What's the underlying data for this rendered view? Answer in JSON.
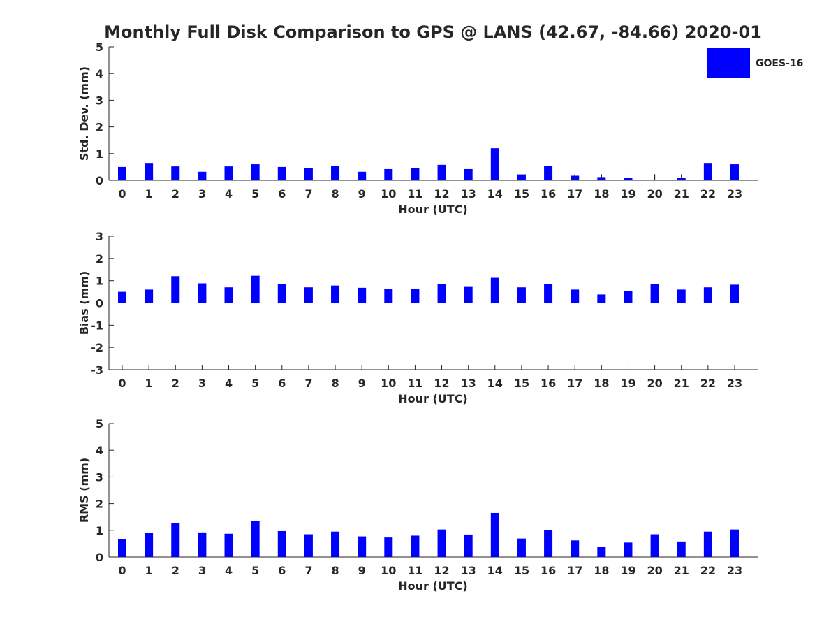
{
  "figure": {
    "title": "Monthly Full Disk Comparison to GPS @ LANS (42.67, -84.66) 2020-01"
  },
  "legend": {
    "label": "GOES-16",
    "color": "#0000ff",
    "placement": "top-right"
  },
  "chart_data": [
    {
      "type": "bar",
      "xlabel": "Hour (UTC)",
      "ylabel": "Std. Dev. (mm)",
      "ylim": [
        0,
        5
      ],
      "yticks": [
        0,
        1,
        2,
        3,
        4,
        5
      ],
      "categories": [
        "0",
        "1",
        "2",
        "3",
        "4",
        "5",
        "6",
        "7",
        "8",
        "9",
        "10",
        "11",
        "12",
        "13",
        "14",
        "15",
        "16",
        "17",
        "18",
        "19",
        "20",
        "21",
        "22",
        "23"
      ],
      "series": [
        {
          "name": "GOES-16",
          "color": "#0000ff",
          "values": [
            0.5,
            0.65,
            0.52,
            0.32,
            0.52,
            0.6,
            0.5,
            0.47,
            0.55,
            0.32,
            0.42,
            0.47,
            0.58,
            0.42,
            1.2,
            0.22,
            0.55,
            0.17,
            0.12,
            0.08,
            0.0,
            0.08,
            0.65,
            0.6
          ]
        }
      ],
      "error_caps": [
        0,
        0,
        0,
        0,
        0,
        0,
        0,
        0,
        0,
        0,
        0,
        0,
        0,
        0,
        0,
        0,
        0,
        0.23,
        0.23,
        0.23,
        0.23,
        0.23,
        0,
        0
      ]
    },
    {
      "type": "bar",
      "xlabel": "Hour (UTC)",
      "ylabel": "Bias (mm)",
      "ylim": [
        -3,
        3
      ],
      "yticks": [
        -3,
        -2,
        -1,
        0,
        1,
        2,
        3
      ],
      "categories": [
        "0",
        "1",
        "2",
        "3",
        "4",
        "5",
        "6",
        "7",
        "8",
        "9",
        "10",
        "11",
        "12",
        "13",
        "14",
        "15",
        "16",
        "17",
        "18",
        "19",
        "20",
        "21",
        "22",
        "23"
      ],
      "series": [
        {
          "name": "GOES-16",
          "color": "#0000ff",
          "values": [
            0.5,
            0.6,
            1.2,
            0.88,
            0.7,
            1.22,
            0.85,
            0.7,
            0.78,
            0.68,
            0.63,
            0.62,
            0.85,
            0.75,
            1.13,
            0.7,
            0.85,
            0.6,
            0.38,
            0.55,
            0.85,
            0.6,
            0.7,
            0.82
          ]
        }
      ]
    },
    {
      "type": "bar",
      "xlabel": "Hour (UTC)",
      "ylabel": "RMS (mm)",
      "ylim": [
        0,
        5
      ],
      "yticks": [
        0,
        1,
        2,
        3,
        4,
        5
      ],
      "categories": [
        "0",
        "1",
        "2",
        "3",
        "4",
        "5",
        "6",
        "7",
        "8",
        "9",
        "10",
        "11",
        "12",
        "13",
        "14",
        "15",
        "16",
        "17",
        "18",
        "19",
        "20",
        "21",
        "22",
        "23"
      ],
      "series": [
        {
          "name": "GOES-16",
          "color": "#0000ff",
          "values": [
            0.68,
            0.9,
            1.28,
            0.92,
            0.87,
            1.35,
            0.97,
            0.85,
            0.95,
            0.77,
            0.73,
            0.8,
            1.03,
            0.84,
            1.65,
            0.69,
            1.0,
            0.62,
            0.38,
            0.54,
            0.85,
            0.58,
            0.95,
            1.03
          ]
        }
      ]
    }
  ]
}
